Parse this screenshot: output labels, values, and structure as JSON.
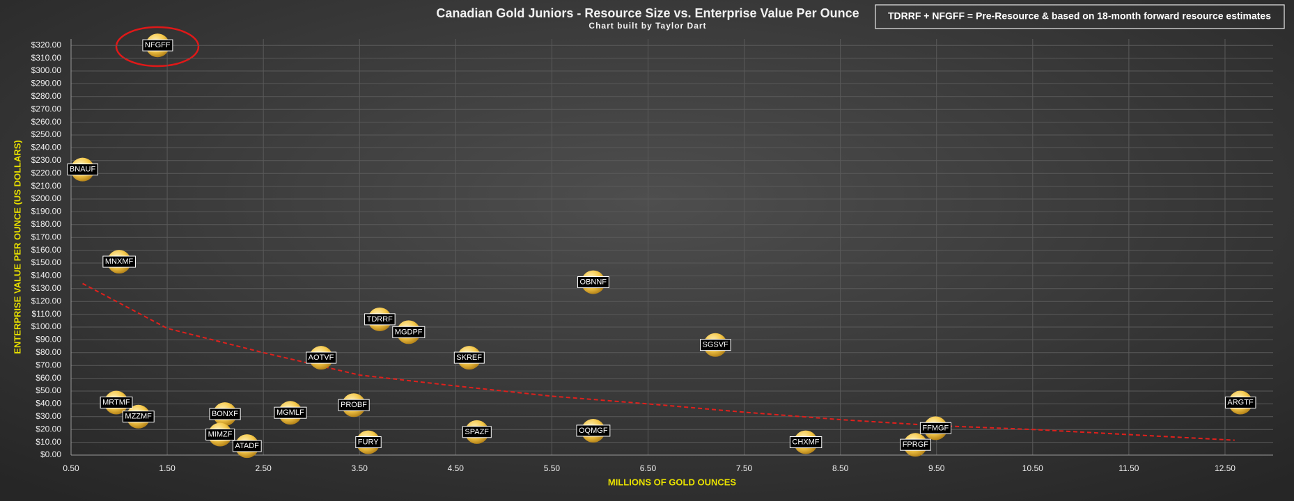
{
  "chart_data": {
    "type": "scatter",
    "title": "Canadian Gold Juniors - Resource Size vs. Enterprise Value Per Ounce",
    "subtitle": "Chart built by Taylor Dart",
    "annotation": "TDRRF  + NFGFF = Pre-Resource & based on 18-month forward resource estimates",
    "x_label": "MILLIONS OF GOLD OUNCES",
    "y_label": "ENTERPRISE VALUE PER OUNCE (US DOLLARS)",
    "color": "#f5c84a",
    "point_labels": [
      "NFGFF",
      "BNAUF",
      "MNXMF",
      "OBNNF",
      "TDRRF",
      "MGDPF",
      "AOTVF",
      "SKREF",
      "SGSVF",
      "MRTMF",
      "MZZMF",
      "BONXF",
      "MGMLF",
      "PROBF",
      "MIMZF",
      "ATADF",
      "FURY",
      "SPAZF",
      "OQMGF",
      "CHXMF",
      "FPRGF",
      "FFMGF",
      "ARGTF"
    ],
    "x": [
      1.4,
      0.62,
      1.0,
      5.93,
      3.71,
      4.01,
      3.1,
      4.64,
      7.2,
      0.97,
      1.2,
      2.1,
      2.78,
      3.44,
      2.05,
      2.33,
      3.59,
      4.72,
      5.93,
      8.14,
      9.28,
      9.49,
      12.66
    ],
    "values": [
      320,
      223,
      151,
      135,
      106,
      96,
      76,
      76,
      86,
      41,
      30,
      32,
      33,
      39,
      16,
      7,
      10,
      18,
      19,
      10,
      8,
      21,
      41
    ],
    "trendline": {
      "color": "#e0201c",
      "x": [
        0.62,
        1.5,
        2.5,
        3.5,
        4.5,
        5.5,
        6.5,
        7.5,
        8.5,
        9.5,
        10.5,
        11.5,
        12.6
      ],
      "values": [
        134,
        99,
        80,
        62.5,
        54,
        46,
        40,
        33.5,
        27.7,
        23,
        20,
        16,
        11.6
      ]
    },
    "xlim": [
      0.5,
      13.0
    ],
    "xticks": [
      {
        "value": 0.5,
        "label": "0.50"
      },
      {
        "value": 1.5,
        "label": "1.50"
      },
      {
        "value": 2.5,
        "label": "2.50"
      },
      {
        "value": 3.5,
        "label": "3.50"
      },
      {
        "value": 4.5,
        "label": "4.50"
      },
      {
        "value": 5.5,
        "label": "5.50"
      },
      {
        "value": 6.5,
        "label": "6.50"
      },
      {
        "value": 7.5,
        "label": "7.50"
      },
      {
        "value": 8.5,
        "label": "8.50"
      },
      {
        "value": 9.5,
        "label": "9.50"
      },
      {
        "value": 10.5,
        "label": "10.50"
      },
      {
        "value": 11.5,
        "label": "11.50"
      },
      {
        "value": 12.5,
        "label": "12.50"
      }
    ],
    "ylim": [
      0,
      325
    ],
    "yticks": [
      {
        "value": 0,
        "label": "$0.00"
      },
      {
        "value": 10,
        "label": "$10.00"
      },
      {
        "value": 20,
        "label": "$20.00"
      },
      {
        "value": 30,
        "label": "$30.00"
      },
      {
        "value": 40,
        "label": "$40.00"
      },
      {
        "value": 50,
        "label": "$50.00"
      },
      {
        "value": 60,
        "label": "$60.00"
      },
      {
        "value": 70,
        "label": "$70.00"
      },
      {
        "value": 80,
        "label": "$80.00"
      },
      {
        "value": 90,
        "label": "$90.00"
      },
      {
        "value": 100,
        "label": "$100.00"
      },
      {
        "value": 110,
        "label": "$110.00"
      },
      {
        "value": 120,
        "label": "$120.00"
      },
      {
        "value": 130,
        "label": "$130.00"
      },
      {
        "value": 140,
        "label": "$140.00"
      },
      {
        "value": 150,
        "label": "$150.00"
      },
      {
        "value": 160,
        "label": "$160.00"
      },
      {
        "value": 170,
        "label": "$170.00"
      },
      {
        "value": 180,
        "label": "$180.00"
      },
      {
        "value": 190,
        "label": "$190.00"
      },
      {
        "value": 200,
        "label": "$200.00"
      },
      {
        "value": 210,
        "label": "$210.00"
      },
      {
        "value": 220,
        "label": "$220.00"
      },
      {
        "value": 230,
        "label": "$230.00"
      },
      {
        "value": 240,
        "label": "$240.00"
      },
      {
        "value": 250,
        "label": "$250.00"
      },
      {
        "value": 260,
        "label": "$260.00"
      },
      {
        "value": 270,
        "label": "$270.00"
      },
      {
        "value": 280,
        "label": "$280.00"
      },
      {
        "value": 290,
        "label": "$290.00"
      },
      {
        "value": 300,
        "label": "$300.00"
      },
      {
        "value": 310,
        "label": "$310.00"
      },
      {
        "value": 320,
        "label": "$320.00"
      }
    ],
    "grid": true
  }
}
